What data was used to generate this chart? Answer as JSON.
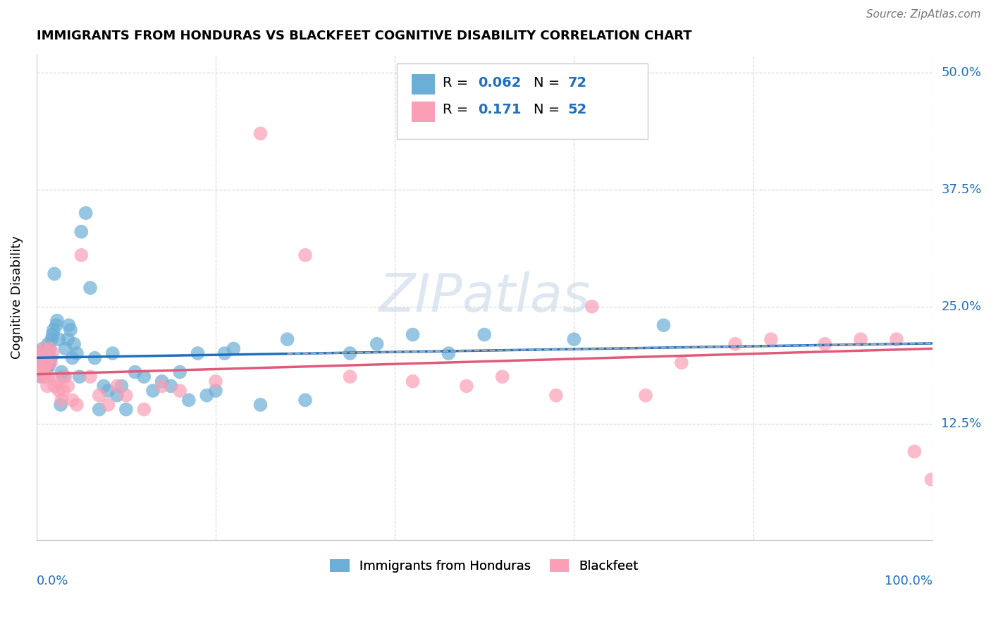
{
  "title": "IMMIGRANTS FROM HONDURAS VS BLACKFEET COGNITIVE DISABILITY CORRELATION CHART",
  "source": "Source: ZipAtlas.com",
  "ylabel": "Cognitive Disability",
  "yticks": [
    "12.5%",
    "25.0%",
    "37.5%",
    "50.0%"
  ],
  "ytick_vals": [
    0.125,
    0.25,
    0.375,
    0.5
  ],
  "xlim": [
    0.0,
    1.0
  ],
  "ylim": [
    0.0,
    0.52
  ],
  "r1": 0.062,
  "n1": 72,
  "r2": 0.171,
  "n2": 52,
  "color_blue": "#6baed6",
  "color_pink": "#fa9fb5",
  "line_blue": "#1f6fbd",
  "line_pink": "#e05a7a",
  "watermark": "ZIPatlas",
  "series1_x": [
    0.002,
    0.003,
    0.004,
    0.005,
    0.005,
    0.006,
    0.007,
    0.007,
    0.008,
    0.009,
    0.01,
    0.01,
    0.011,
    0.011,
    0.012,
    0.013,
    0.013,
    0.014,
    0.015,
    0.015,
    0.016,
    0.017,
    0.018,
    0.019,
    0.02,
    0.022,
    0.023,
    0.025,
    0.027,
    0.028,
    0.03,
    0.032,
    0.035,
    0.036,
    0.038,
    0.04,
    0.042,
    0.045,
    0.048,
    0.05,
    0.055,
    0.06,
    0.065,
    0.07,
    0.075,
    0.08,
    0.085,
    0.09,
    0.095,
    0.1,
    0.11,
    0.12,
    0.13,
    0.14,
    0.15,
    0.16,
    0.17,
    0.18,
    0.19,
    0.2,
    0.21,
    0.22,
    0.25,
    0.28,
    0.3,
    0.35,
    0.38,
    0.42,
    0.46,
    0.5,
    0.6,
    0.7
  ],
  "series1_y": [
    0.2,
    0.185,
    0.195,
    0.19,
    0.175,
    0.18,
    0.205,
    0.195,
    0.178,
    0.182,
    0.19,
    0.183,
    0.192,
    0.198,
    0.2,
    0.185,
    0.21,
    0.188,
    0.193,
    0.205,
    0.195,
    0.215,
    0.22,
    0.225,
    0.285,
    0.23,
    0.235,
    0.215,
    0.145,
    0.18,
    0.175,
    0.205,
    0.215,
    0.23,
    0.225,
    0.195,
    0.21,
    0.2,
    0.175,
    0.33,
    0.35,
    0.27,
    0.195,
    0.14,
    0.165,
    0.16,
    0.2,
    0.155,
    0.165,
    0.14,
    0.18,
    0.175,
    0.16,
    0.17,
    0.165,
    0.18,
    0.15,
    0.2,
    0.155,
    0.16,
    0.2,
    0.205,
    0.145,
    0.215,
    0.15,
    0.2,
    0.21,
    0.22,
    0.2,
    0.22,
    0.215,
    0.23
  ],
  "series2_x": [
    0.002,
    0.003,
    0.004,
    0.005,
    0.006,
    0.007,
    0.008,
    0.009,
    0.01,
    0.011,
    0.012,
    0.013,
    0.014,
    0.015,
    0.016,
    0.018,
    0.02,
    0.022,
    0.025,
    0.028,
    0.03,
    0.032,
    0.035,
    0.04,
    0.045,
    0.05,
    0.06,
    0.07,
    0.08,
    0.09,
    0.1,
    0.12,
    0.14,
    0.16,
    0.2,
    0.25,
    0.3,
    0.35,
    0.42,
    0.48,
    0.52,
    0.58,
    0.62,
    0.68,
    0.72,
    0.78,
    0.82,
    0.88,
    0.92,
    0.96,
    0.98,
    0.999
  ],
  "series2_y": [
    0.2,
    0.185,
    0.19,
    0.175,
    0.195,
    0.18,
    0.205,
    0.185,
    0.175,
    0.19,
    0.165,
    0.175,
    0.195,
    0.205,
    0.19,
    0.2,
    0.165,
    0.17,
    0.16,
    0.15,
    0.16,
    0.175,
    0.165,
    0.15,
    0.145,
    0.305,
    0.175,
    0.155,
    0.145,
    0.165,
    0.155,
    0.14,
    0.165,
    0.16,
    0.17,
    0.435,
    0.305,
    0.175,
    0.17,
    0.165,
    0.175,
    0.155,
    0.25,
    0.155,
    0.19,
    0.21,
    0.215,
    0.21,
    0.215,
    0.215,
    0.095,
    0.065
  ]
}
